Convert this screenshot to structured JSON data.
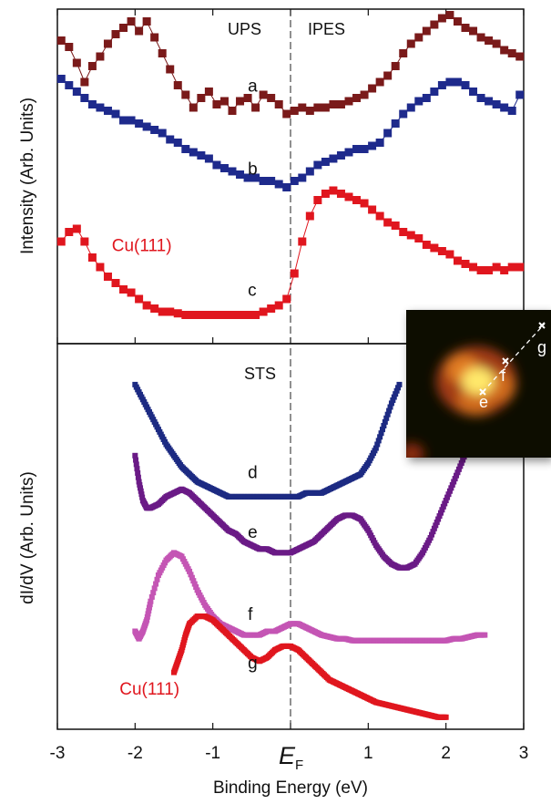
{
  "chart_data": {
    "type": "scatter",
    "xlabel": "Binding Energy (eV)",
    "x_ticks": [
      "-3",
      "-2",
      "-1",
      "",
      "1",
      "2",
      "3"
    ],
    "xlim": [
      -3,
      3
    ],
    "fermi_label": "E",
    "fermi_sub": "F",
    "panels": [
      {
        "ylabel": "Intensity (Arb. Units)",
        "section_labels": [
          "UPS",
          "IPES"
        ],
        "curve_labels": [
          {
            "text": "a",
            "x": -0.55,
            "y": 0.77
          },
          {
            "text": "b",
            "x": -0.55,
            "y": 0.51
          },
          {
            "text": "c",
            "x": -0.55,
            "y": 0.13
          },
          {
            "text": "Cu(111)",
            "x": -2.3,
            "y": 0.27
          }
        ],
        "series": [
          {
            "color": "#7a1a1a",
            "marker": "square",
            "line": true,
            "x": [
              -2.95,
              -2.85,
              -2.75,
              -2.65,
              -2.55,
              -2.45,
              -2.35,
              -2.25,
              -2.15,
              -2.05,
              -1.95,
              -1.85,
              -1.75,
              -1.65,
              -1.55,
              -1.45,
              -1.35,
              -1.25,
              -1.15,
              -1.05,
              -0.95,
              -0.85,
              -0.75,
              -0.65,
              -0.55,
              -0.45,
              -0.35,
              -0.25,
              -0.15,
              -0.05,
              0.05,
              0.15,
              0.25,
              0.35,
              0.45,
              0.55,
              0.65,
              0.75,
              0.85,
              0.95,
              1.05,
              1.15,
              1.25,
              1.35,
              1.45,
              1.55,
              1.65,
              1.75,
              1.85,
              1.95,
              2.05,
              2.15,
              2.25,
              2.35,
              2.45,
              2.55,
              2.65,
              2.75,
              2.85,
              2.95
            ],
            "y": [
              0.93,
              0.91,
              0.86,
              0.8,
              0.85,
              0.88,
              0.92,
              0.95,
              0.97,
              0.99,
              0.96,
              0.99,
              0.94,
              0.89,
              0.84,
              0.79,
              0.76,
              0.72,
              0.75,
              0.77,
              0.73,
              0.74,
              0.71,
              0.74,
              0.75,
              0.72,
              0.76,
              0.75,
              0.73,
              0.7,
              0.71,
              0.72,
              0.71,
              0.72,
              0.72,
              0.73,
              0.73,
              0.74,
              0.75,
              0.76,
              0.78,
              0.8,
              0.82,
              0.85,
              0.89,
              0.92,
              0.94,
              0.96,
              0.98,
              1.0,
              1.01,
              0.99,
              0.97,
              0.96,
              0.94,
              0.93,
              0.92,
              0.9,
              0.89,
              0.88
            ]
          },
          {
            "color": "#1e2a8c",
            "marker": "square",
            "line": true,
            "x": [
              -2.95,
              -2.85,
              -2.75,
              -2.65,
              -2.55,
              -2.45,
              -2.35,
              -2.25,
              -2.15,
              -2.05,
              -1.95,
              -1.85,
              -1.75,
              -1.65,
              -1.55,
              -1.45,
              -1.35,
              -1.25,
              -1.15,
              -1.05,
              -0.95,
              -0.85,
              -0.75,
              -0.65,
              -0.55,
              -0.45,
              -0.35,
              -0.25,
              -0.15,
              -0.05,
              0.05,
              0.15,
              0.25,
              0.35,
              0.45,
              0.55,
              0.65,
              0.75,
              0.85,
              0.95,
              1.05,
              1.15,
              1.25,
              1.35,
              1.45,
              1.55,
              1.65,
              1.75,
              1.85,
              1.95,
              2.05,
              2.15,
              2.25,
              2.35,
              2.45,
              2.55,
              2.65,
              2.75,
              2.85,
              2.95
            ],
            "y": [
              0.81,
              0.79,
              0.77,
              0.75,
              0.73,
              0.72,
              0.71,
              0.7,
              0.68,
              0.68,
              0.67,
              0.66,
              0.65,
              0.64,
              0.62,
              0.61,
              0.59,
              0.58,
              0.57,
              0.56,
              0.54,
              0.53,
              0.52,
              0.51,
              0.5,
              0.5,
              0.49,
              0.49,
              0.48,
              0.47,
              0.49,
              0.5,
              0.52,
              0.54,
              0.55,
              0.56,
              0.57,
              0.58,
              0.59,
              0.59,
              0.6,
              0.61,
              0.64,
              0.67,
              0.7,
              0.72,
              0.74,
              0.75,
              0.77,
              0.79,
              0.8,
              0.8,
              0.79,
              0.77,
              0.75,
              0.74,
              0.73,
              0.72,
              0.71,
              0.76
            ]
          },
          {
            "color": "#e0161e",
            "marker": "square",
            "line": true,
            "x": [
              -2.95,
              -2.85,
              -2.75,
              -2.65,
              -2.55,
              -2.45,
              -2.35,
              -2.25,
              -2.15,
              -2.05,
              -1.95,
              -1.85,
              -1.75,
              -1.65,
              -1.55,
              -1.45,
              -1.35,
              -1.25,
              -1.15,
              -1.05,
              -0.95,
              -0.85,
              -0.75,
              -0.65,
              -0.55,
              -0.45,
              -0.35,
              -0.25,
              -0.15,
              -0.05,
              0.05,
              0.15,
              0.25,
              0.35,
              0.45,
              0.55,
              0.65,
              0.75,
              0.85,
              0.95,
              1.05,
              1.15,
              1.25,
              1.35,
              1.45,
              1.55,
              1.65,
              1.75,
              1.85,
              1.95,
              2.05,
              2.15,
              2.25,
              2.35,
              2.45,
              2.55,
              2.65,
              2.75,
              2.85,
              2.95
            ],
            "y": [
              0.3,
              0.33,
              0.34,
              0.3,
              0.25,
              0.22,
              0.19,
              0.17,
              0.15,
              0.14,
              0.12,
              0.1,
              0.09,
              0.08,
              0.08,
              0.075,
              0.07,
              0.07,
              0.07,
              0.07,
              0.07,
              0.07,
              0.07,
              0.07,
              0.07,
              0.07,
              0.08,
              0.09,
              0.1,
              0.12,
              0.2,
              0.3,
              0.38,
              0.43,
              0.45,
              0.46,
              0.45,
              0.44,
              0.43,
              0.42,
              0.4,
              0.38,
              0.36,
              0.35,
              0.33,
              0.32,
              0.31,
              0.29,
              0.28,
              0.27,
              0.26,
              0.24,
              0.23,
              0.22,
              0.21,
              0.21,
              0.22,
              0.21,
              0.22,
              0.22
            ]
          }
        ]
      },
      {
        "ylabel": "dI/dV (Arb. Units)",
        "section_labels": [
          "STS"
        ],
        "curve_labels": [
          {
            "text": "d",
            "x": -0.55,
            "y": 0.66
          },
          {
            "text": "e",
            "x": -0.55,
            "y": 0.5
          },
          {
            "text": "f",
            "x": -0.55,
            "y": 0.28
          },
          {
            "text": "g",
            "x": -0.55,
            "y": 0.15
          },
          {
            "text": "Cu(111)",
            "x": -2.2,
            "y": 0.08
          }
        ],
        "series": [
          {
            "color": "#1c2a82",
            "marker": "dot",
            "x": [
              -2.0,
              -1.9,
              -1.8,
              -1.7,
              -1.6,
              -1.5,
              -1.4,
              -1.3,
              -1.2,
              -1.1,
              -1.0,
              -0.9,
              -0.8,
              -0.7,
              -0.6,
              -0.5,
              -0.4,
              -0.3,
              -0.2,
              -0.1,
              0.0,
              0.1,
              0.2,
              0.3,
              0.4,
              0.5,
              0.6,
              0.7,
              0.8,
              0.9,
              1.0,
              1.1,
              1.2,
              1.3,
              1.4
            ],
            "y": [
              0.91,
              0.87,
              0.83,
              0.79,
              0.75,
              0.72,
              0.69,
              0.67,
              0.65,
              0.64,
              0.63,
              0.62,
              0.61,
              0.61,
              0.61,
              0.61,
              0.61,
              0.61,
              0.61,
              0.61,
              0.61,
              0.61,
              0.62,
              0.62,
              0.62,
              0.63,
              0.64,
              0.65,
              0.66,
              0.67,
              0.7,
              0.74,
              0.8,
              0.86,
              0.91
            ]
          },
          {
            "color": "#6a1a86",
            "marker": "dot",
            "x": [
              -2.0,
              -1.95,
              -1.9,
              -1.85,
              -1.8,
              -1.7,
              -1.6,
              -1.5,
              -1.4,
              -1.3,
              -1.2,
              -1.1,
              -1.0,
              -0.9,
              -0.8,
              -0.7,
              -0.6,
              -0.5,
              -0.4,
              -0.3,
              -0.2,
              -0.1,
              0.0,
              0.1,
              0.2,
              0.3,
              0.4,
              0.5,
              0.6,
              0.7,
              0.8,
              0.9,
              1.0,
              1.1,
              1.2,
              1.3,
              1.4,
              1.5,
              1.6,
              1.7,
              1.8,
              1.9,
              2.0,
              2.1,
              2.2,
              2.3
            ],
            "y": [
              0.72,
              0.65,
              0.6,
              0.58,
              0.58,
              0.59,
              0.61,
              0.62,
              0.63,
              0.62,
              0.6,
              0.58,
              0.56,
              0.54,
              0.52,
              0.51,
              0.49,
              0.48,
              0.47,
              0.47,
              0.46,
              0.46,
              0.46,
              0.47,
              0.48,
              0.49,
              0.51,
              0.53,
              0.55,
              0.56,
              0.56,
              0.55,
              0.52,
              0.48,
              0.45,
              0.43,
              0.42,
              0.42,
              0.43,
              0.46,
              0.5,
              0.55,
              0.6,
              0.65,
              0.7,
              0.75
            ]
          },
          {
            "color": "#c455b4",
            "marker": "dot",
            "x": [
              -2.0,
              -1.95,
              -1.9,
              -1.85,
              -1.8,
              -1.7,
              -1.6,
              -1.5,
              -1.4,
              -1.3,
              -1.2,
              -1.1,
              -1.0,
              -0.9,
              -0.8,
              -0.7,
              -0.6,
              -0.5,
              -0.4,
              -0.3,
              -0.2,
              -0.1,
              0.0,
              0.1,
              0.2,
              0.3,
              0.4,
              0.5,
              0.6,
              0.7,
              0.8,
              0.9,
              1.0,
              1.1,
              1.2,
              1.3,
              1.4,
              1.5,
              1.6,
              1.7,
              1.8,
              1.9,
              2.0,
              2.1,
              2.2,
              2.3,
              2.4,
              2.5
            ],
            "y": [
              0.25,
              0.23,
              0.25,
              0.28,
              0.33,
              0.4,
              0.44,
              0.46,
              0.45,
              0.41,
              0.36,
              0.32,
              0.29,
              0.27,
              0.26,
              0.25,
              0.24,
              0.24,
              0.24,
              0.25,
              0.25,
              0.26,
              0.27,
              0.27,
              0.26,
              0.25,
              0.24,
              0.235,
              0.23,
              0.23,
              0.225,
              0.225,
              0.225,
              0.225,
              0.225,
              0.225,
              0.225,
              0.225,
              0.225,
              0.225,
              0.225,
              0.225,
              0.225,
              0.23,
              0.23,
              0.235,
              0.24,
              0.24
            ]
          },
          {
            "color": "#e0161e",
            "marker": "dot",
            "x": [
              -1.5,
              -1.45,
              -1.4,
              -1.35,
              -1.3,
              -1.2,
              -1.1,
              -1.0,
              -0.9,
              -0.8,
              -0.7,
              -0.6,
              -0.5,
              -0.4,
              -0.3,
              -0.2,
              -0.1,
              0.0,
              0.1,
              0.2,
              0.3,
              0.4,
              0.5,
              0.6,
              0.7,
              0.8,
              0.9,
              1.0,
              1.1,
              1.2,
              1.3,
              1.4,
              1.5,
              1.6,
              1.7,
              1.8,
              1.9,
              2.0
            ],
            "y": [
              0.14,
              0.17,
              0.2,
              0.24,
              0.27,
              0.29,
              0.29,
              0.28,
              0.26,
              0.24,
              0.22,
              0.2,
              0.18,
              0.17,
              0.18,
              0.2,
              0.21,
              0.21,
              0.2,
              0.18,
              0.16,
              0.14,
              0.12,
              0.11,
              0.1,
              0.09,
              0.08,
              0.07,
              0.06,
              0.055,
              0.05,
              0.045,
              0.04,
              0.035,
              0.03,
              0.025,
              0.02,
              0.02
            ]
          }
        ]
      }
    ],
    "inset": {
      "labels": [
        "e",
        "f",
        "g"
      ]
    }
  }
}
